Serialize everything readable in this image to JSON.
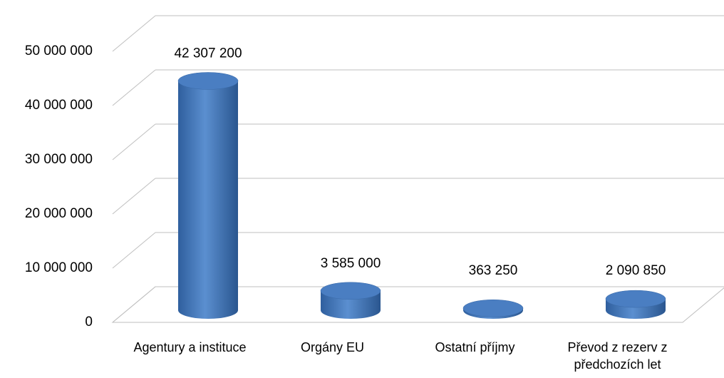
{
  "chart_data": {
    "type": "bar3d",
    "categories": [
      "Agentury a instituce",
      "Orgány EU",
      "Ostatní příjmy",
      "Převod z rezerv z předchozích let"
    ],
    "values": [
      42307200,
      3585000,
      363250,
      2090850
    ],
    "value_labels": [
      "42 307 200",
      "3 585 000",
      "363 250",
      "2 090 850"
    ],
    "color": "#4f81bd",
    "ylim": [
      0,
      50000000
    ],
    "yticks": [
      0,
      {
        "value": 10000000,
        "label": "10 000 000"
      },
      {
        "value": 20000000,
        "label": "20 000 000"
      },
      {
        "value": 30000000,
        "label": "30 000 000"
      },
      {
        "value": 40000000,
        "label": "40 000 000"
      },
      {
        "value": 50000000,
        "label": "50 000 000"
      }
    ],
    "grid": true
  }
}
